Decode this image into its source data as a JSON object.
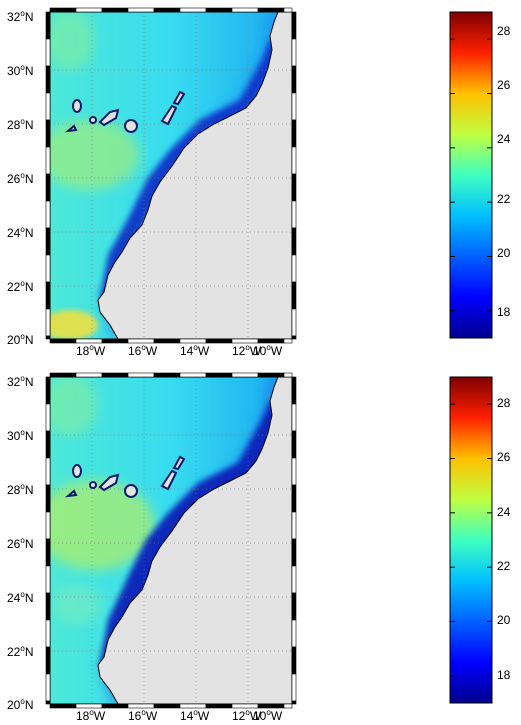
{
  "maps": [
    {
      "id": "top",
      "lat_labels": [
        "32",
        "30",
        "28",
        "26",
        "24",
        "22",
        "20"
      ],
      "lat_hemisphere": "N",
      "lon_labels": [
        "18",
        "16",
        "14",
        "12",
        "10"
      ],
      "lon_hemisphere": "W",
      "degree_symbol": "o"
    },
    {
      "id": "bottom",
      "lat_labels": [
        "32",
        "30",
        "28",
        "26",
        "24",
        "22",
        "20"
      ],
      "lat_hemisphere": "N",
      "lon_labels": [
        "18",
        "16",
        "14",
        "12",
        "10"
      ],
      "lon_hemisphere": "W",
      "degree_symbol": "o"
    }
  ],
  "colorbars": [
    {
      "id": "top",
      "labels": [
        "28",
        "26",
        "24",
        "22",
        "20",
        "18"
      ],
      "range": [
        17,
        29
      ]
    },
    {
      "id": "bottom",
      "labels": [
        "28",
        "26",
        "24",
        "22",
        "20",
        "18"
      ],
      "range": [
        17,
        29
      ]
    }
  ],
  "colors": {
    "land": "#e3e3e3",
    "ocean_base": "#3ce0ef",
    "upwelling": "#0a2fc8",
    "warm": "#f0e040",
    "colormap": [
      "#00008f",
      "#0000ff",
      "#0080ff",
      "#00ffff",
      "#80ff80",
      "#ffff00",
      "#ff8000",
      "#ff0000",
      "#800000"
    ]
  }
}
